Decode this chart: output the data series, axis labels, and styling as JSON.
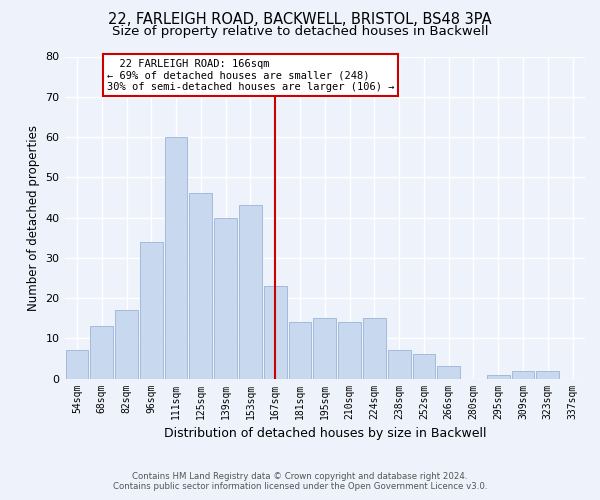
{
  "title": "22, FARLEIGH ROAD, BACKWELL, BRISTOL, BS48 3PA",
  "subtitle": "Size of property relative to detached houses in Backwell",
  "xlabel": "Distribution of detached houses by size in Backwell",
  "ylabel": "Number of detached properties",
  "bar_labels": [
    "54sqm",
    "68sqm",
    "82sqm",
    "96sqm",
    "111sqm",
    "125sqm",
    "139sqm",
    "153sqm",
    "167sqm",
    "181sqm",
    "195sqm",
    "210sqm",
    "224sqm",
    "238sqm",
    "252sqm",
    "266sqm",
    "280sqm",
    "295sqm",
    "309sqm",
    "323sqm",
    "337sqm"
  ],
  "bar_values": [
    7,
    13,
    17,
    34,
    60,
    46,
    40,
    43,
    23,
    14,
    15,
    14,
    15,
    7,
    6,
    3,
    0,
    1,
    2,
    2,
    0
  ],
  "bar_color": "#c8d8ee",
  "bar_edge_color": "#9ab4d8",
  "vline_x": 8,
  "vline_color": "#cc0000",
  "annotation_title": "22 FARLEIGH ROAD: 166sqm",
  "annotation_line1": "← 69% of detached houses are smaller (248)",
  "annotation_line2": "30% of semi-detached houses are larger (106) →",
  "annotation_box_color": "#ffffff",
  "annotation_box_edge": "#cc0000",
  "ylim": [
    0,
    80
  ],
  "yticks": [
    0,
    10,
    20,
    30,
    40,
    50,
    60,
    70,
    80
  ],
  "background_color": "#eef2fa",
  "footer_line1": "Contains HM Land Registry data © Crown copyright and database right 2024.",
  "footer_line2": "Contains public sector information licensed under the Open Government Licence v3.0.",
  "title_fontsize": 10.5,
  "subtitle_fontsize": 9.5,
  "xlabel_fontsize": 9,
  "ylabel_fontsize": 8.5
}
